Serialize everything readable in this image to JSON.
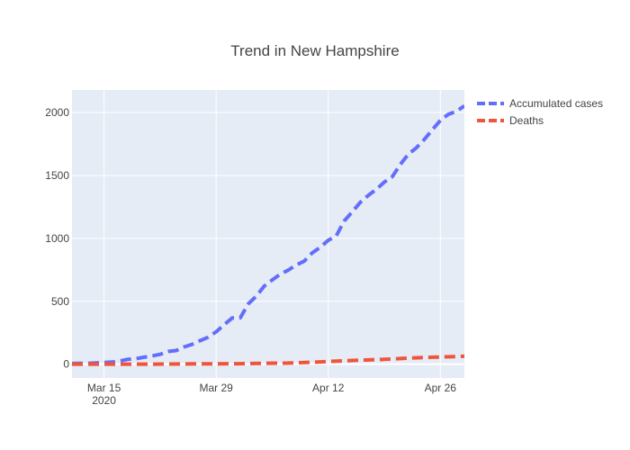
{
  "chart_data": {
    "type": "line",
    "title": "Trend in New Hampshire",
    "xlabel": "",
    "ylabel": "",
    "x_axis": {
      "range": [
        "2020-03-11",
        "2020-04-29"
      ],
      "ticks": [
        {
          "date": "2020-03-15",
          "label": "Mar 15",
          "sublabel": "2020"
        },
        {
          "date": "2020-03-29",
          "label": "Mar 29",
          "sublabel": ""
        },
        {
          "date": "2020-04-12",
          "label": "Apr 12",
          "sublabel": ""
        },
        {
          "date": "2020-04-26",
          "label": "Apr 26",
          "sublabel": ""
        }
      ]
    },
    "y_axis": {
      "range": [
        -110,
        2180
      ],
      "ticks": [
        0,
        500,
        1000,
        1500,
        2000
      ]
    },
    "grid": true,
    "legend_position": "top-right",
    "series": [
      {
        "name": "Accumulated cases",
        "color": "#636efa",
        "dash": "dash",
        "x": [
          "2020-03-11",
          "2020-03-12",
          "2020-03-13",
          "2020-03-14",
          "2020-03-15",
          "2020-03-16",
          "2020-03-17",
          "2020-03-18",
          "2020-03-19",
          "2020-03-20",
          "2020-03-21",
          "2020-03-22",
          "2020-03-23",
          "2020-03-24",
          "2020-03-25",
          "2020-03-26",
          "2020-03-27",
          "2020-03-28",
          "2020-03-29",
          "2020-03-30",
          "2020-03-31",
          "2020-04-01",
          "2020-04-02",
          "2020-04-03",
          "2020-04-04",
          "2020-04-05",
          "2020-04-06",
          "2020-04-07",
          "2020-04-08",
          "2020-04-09",
          "2020-04-10",
          "2020-04-11",
          "2020-04-12",
          "2020-04-13",
          "2020-04-14",
          "2020-04-15",
          "2020-04-16",
          "2020-04-17",
          "2020-04-18",
          "2020-04-19",
          "2020-04-20",
          "2020-04-21",
          "2020-04-22",
          "2020-04-23",
          "2020-04-24",
          "2020-04-25",
          "2020-04-26",
          "2020-04-27",
          "2020-04-28",
          "2020-04-29"
        ],
        "y": [
          5,
          6,
          6,
          10,
          13,
          17,
          26,
          39,
          44,
          55,
          65,
          78,
          101,
          108,
          137,
          158,
          187,
          214,
          258,
          314,
          367,
          367,
          479,
          540,
          621,
          669,
          715,
          747,
          788,
          819,
          885,
          929,
          985,
          1020,
          1139,
          1211,
          1287,
          1342,
          1390,
          1447,
          1491,
          1588,
          1670,
          1720,
          1787,
          1864,
          1938,
          1987,
          2010,
          2054
        ]
      },
      {
        "name": "Deaths",
        "color": "#ef553b",
        "dash": "dash",
        "x": [
          "2020-03-11",
          "2020-03-14",
          "2020-03-17",
          "2020-03-20",
          "2020-03-23",
          "2020-03-26",
          "2020-03-29",
          "2020-04-01",
          "2020-04-04",
          "2020-04-07",
          "2020-04-10",
          "2020-04-13",
          "2020-04-16",
          "2020-04-19",
          "2020-04-22",
          "2020-04-25",
          "2020-04-28",
          "2020-04-29"
        ],
        "y": [
          0,
          0,
          0,
          0,
          1,
          2,
          3,
          4,
          7,
          9,
          15,
          24,
          32,
          38,
          48,
          55,
          60,
          63
        ]
      }
    ]
  }
}
